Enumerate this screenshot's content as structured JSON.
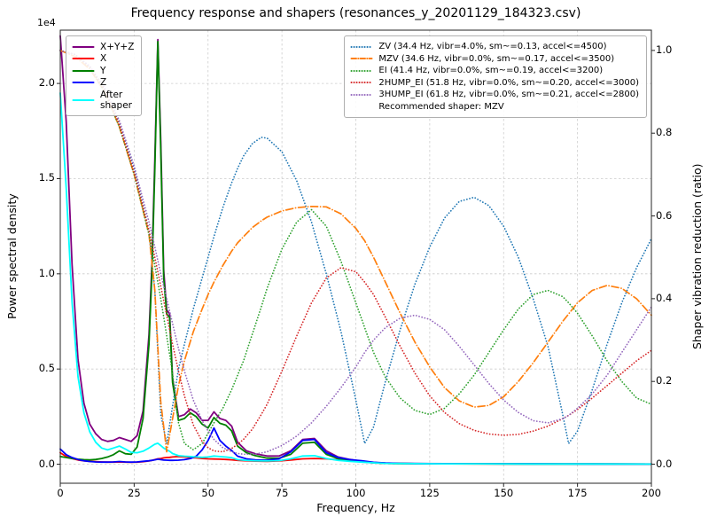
{
  "chart_data": {
    "type": "line",
    "title": "Frequency response and shapers (resonances_y_20201129_184323.csv)",
    "xlabel": "Frequency, Hz",
    "ylabel_left": "Power spectral density",
    "ylabel_right": "Shaper vibration reduction (ratio)",
    "y_left_offset_text": "1e4",
    "recommended_note": "Recommended shaper: MZV",
    "grid": true,
    "legend_left_position": "upper left",
    "legend_right_position": "upper right",
    "xlim": [
      0,
      200
    ],
    "ylim_left": [
      -1000,
      22800
    ],
    "ylim_right": [
      -0.046,
      1.049
    ],
    "y_left_scale": 10000,
    "x_ticks": [
      0,
      25,
      50,
      75,
      100,
      125,
      150,
      175,
      200
    ],
    "y_left_ticks": [
      "0.0",
      "0.5",
      "1.0",
      "1.5",
      "2.0"
    ],
    "y_right_ticks": [
      "0.0",
      "0.2",
      "0.4",
      "0.6",
      "0.8",
      "1.0"
    ],
    "x_psd": [
      0,
      2,
      4,
      6,
      8,
      10,
      12,
      14,
      16,
      18,
      20,
      22,
      24,
      26,
      28,
      30,
      31,
      32,
      33,
      34,
      35,
      36,
      37,
      38,
      40,
      42,
      44,
      46,
      48,
      50,
      52,
      54,
      56,
      58,
      60,
      63,
      66,
      70,
      74,
      78,
      82,
      86,
      90,
      94,
      98,
      102,
      106,
      110,
      115,
      120,
      130,
      140,
      160,
      180,
      200
    ],
    "psd_series": [
      {
        "name": "xyz",
        "label": "X+Y+Z",
        "color": "#800080",
        "style": "solid",
        "axis": "left",
        "y": [
          22500,
          18000,
          10500,
          5500,
          3200,
          2100,
          1600,
          1300,
          1200,
          1250,
          1400,
          1300,
          1200,
          1500,
          2800,
          6800,
          10500,
          16000,
          22300,
          17000,
          10200,
          8100,
          7900,
          4500,
          2500,
          2600,
          2900,
          2700,
          2300,
          2300,
          2750,
          2400,
          2300,
          2000,
          1150,
          700,
          550,
          430,
          430,
          700,
          1300,
          1350,
          700,
          380,
          250,
          160,
          90,
          55,
          42,
          35,
          28,
          25,
          18,
          14,
          12
        ]
      },
      {
        "name": "x",
        "label": "X",
        "color": "#ff0000",
        "style": "solid",
        "axis": "left",
        "y": [
          600,
          400,
          300,
          220,
          180,
          150,
          130,
          120,
          110,
          110,
          120,
          110,
          100,
          110,
          130,
          170,
          200,
          240,
          280,
          300,
          330,
          350,
          360,
          380,
          400,
          380,
          350,
          330,
          300,
          280,
          270,
          260,
          250,
          230,
          200,
          180,
          160,
          150,
          170,
          220,
          280,
          300,
          280,
          230,
          180,
          120,
          70,
          45,
          35,
          28,
          20,
          15,
          10,
          8,
          6
        ]
      },
      {
        "name": "y",
        "label": "Y",
        "color": "#008000",
        "style": "solid",
        "axis": "left",
        "y": [
          400,
          350,
          300,
          260,
          240,
          230,
          250,
          300,
          380,
          500,
          700,
          550,
          520,
          900,
          2400,
          6300,
          10000,
          15500,
          22200,
          16500,
          9800,
          7900,
          7700,
          4300,
          2300,
          2400,
          2700,
          2500,
          2100,
          1900,
          2450,
          2150,
          2050,
          1750,
          950,
          600,
          450,
          320,
          310,
          520,
          1100,
          1150,
          520,
          290,
          190,
          130,
          80,
          45,
          35,
          28,
          22,
          18,
          12,
          10,
          8
        ]
      },
      {
        "name": "z",
        "label": "Z",
        "color": "#0000ff",
        "style": "solid",
        "axis": "left",
        "y": [
          800,
          500,
          350,
          250,
          180,
          140,
          120,
          110,
          110,
          120,
          140,
          120,
          110,
          120,
          150,
          180,
          200,
          230,
          260,
          240,
          220,
          210,
          200,
          200,
          210,
          240,
          300,
          420,
          750,
          1250,
          1900,
          1250,
          950,
          720,
          420,
          280,
          230,
          210,
          280,
          650,
          1250,
          1300,
          600,
          350,
          240,
          180,
          100,
          60,
          45,
          35,
          25,
          20,
          14,
          10,
          8
        ]
      },
      {
        "name": "after_shaper",
        "label": "After\nshaper",
        "color": "#00ffff",
        "style": "solid",
        "axis": "left",
        "y": [
          19500,
          14500,
          8500,
          4600,
          2700,
          1700,
          1150,
          850,
          750,
          850,
          950,
          800,
          620,
          600,
          680,
          850,
          950,
          1050,
          1100,
          980,
          850,
          750,
          680,
          560,
          450,
          420,
          400,
          380,
          360,
          380,
          430,
          400,
          380,
          340,
          240,
          200,
          180,
          170,
          190,
          280,
          430,
          450,
          300,
          200,
          150,
          110,
          70,
          45,
          35,
          28,
          22,
          18,
          12,
          10,
          8
        ]
      }
    ],
    "x_shapers": [
      0,
      5,
      10,
      15,
      20,
      25,
      30,
      32,
      34,
      36,
      38,
      40,
      42,
      45,
      48,
      50,
      52,
      55,
      58,
      60,
      62,
      65,
      68,
      70,
      75,
      80,
      85,
      90,
      95,
      100,
      103,
      106,
      110,
      115,
      120,
      125,
      130,
      135,
      140,
      145,
      150,
      155,
      160,
      165,
      170,
      172,
      175,
      180,
      185,
      190,
      195,
      200
    ],
    "shaper_series": [
      {
        "name": "zv",
        "label": "ZV (34.4 Hz, vibr=4.0%, sm~=0.13, accel<=4500)",
        "color": "#1f77b4",
        "style": "dotted",
        "axis": "right",
        "y": [
          1.0,
          0.99,
          0.96,
          0.905,
          0.825,
          0.715,
          0.565,
          0.42,
          0.12,
          0.05,
          0.14,
          0.23,
          0.29,
          0.375,
          0.45,
          0.5,
          0.55,
          0.62,
          0.68,
          0.715,
          0.745,
          0.775,
          0.79,
          0.788,
          0.755,
          0.685,
          0.585,
          0.46,
          0.32,
          0.155,
          0.05,
          0.09,
          0.2,
          0.325,
          0.435,
          0.525,
          0.595,
          0.635,
          0.645,
          0.625,
          0.575,
          0.5,
          0.4,
          0.285,
          0.12,
          0.05,
          0.08,
          0.18,
          0.29,
          0.39,
          0.475,
          0.545
        ]
      },
      {
        "name": "mzv",
        "label": "MZV (34.6 Hz, vibr=0.0%, sm~=0.17, accel<=3500)",
        "color": "#ff7f0e",
        "style": "dashdot",
        "axis": "right",
        "y": [
          1.0,
          0.985,
          0.955,
          0.9,
          0.815,
          0.7,
          0.555,
          0.42,
          0.15,
          0.03,
          0.11,
          0.19,
          0.25,
          0.32,
          0.375,
          0.41,
          0.44,
          0.48,
          0.515,
          0.535,
          0.55,
          0.572,
          0.588,
          0.597,
          0.612,
          0.62,
          0.623,
          0.622,
          0.605,
          0.57,
          0.54,
          0.5,
          0.44,
          0.365,
          0.295,
          0.235,
          0.185,
          0.153,
          0.138,
          0.142,
          0.163,
          0.2,
          0.245,
          0.295,
          0.345,
          0.363,
          0.39,
          0.42,
          0.432,
          0.425,
          0.4,
          0.36
        ]
      },
      {
        "name": "ei",
        "label": "EI (41.4 Hz, vibr=0.0%, sm~=0.19, accel<=3200)",
        "color": "#2ca02c",
        "style": "dotted",
        "axis": "right",
        "y": [
          1.0,
          0.99,
          0.96,
          0.9,
          0.815,
          0.7,
          0.555,
          0.48,
          0.4,
          0.31,
          0.22,
          0.1,
          0.05,
          0.035,
          0.05,
          0.075,
          0.1,
          0.135,
          0.18,
          0.215,
          0.25,
          0.315,
          0.38,
          0.425,
          0.52,
          0.585,
          0.615,
          0.575,
          0.49,
          0.39,
          0.33,
          0.27,
          0.21,
          0.16,
          0.13,
          0.12,
          0.135,
          0.17,
          0.215,
          0.27,
          0.325,
          0.375,
          0.41,
          0.42,
          0.405,
          0.39,
          0.365,
          0.31,
          0.25,
          0.2,
          0.16,
          0.145
        ]
      },
      {
        "name": "2hump_ei",
        "label": "2HUMP_EI (51.8 Hz, vibr=0.0%, sm~=0.20, accel<=3000)",
        "color": "#d62728",
        "style": "dotted",
        "axis": "right",
        "y": [
          1.0,
          0.99,
          0.96,
          0.905,
          0.82,
          0.705,
          0.565,
          0.5,
          0.43,
          0.36,
          0.29,
          0.225,
          0.165,
          0.095,
          0.055,
          0.04,
          0.032,
          0.03,
          0.038,
          0.048,
          0.06,
          0.085,
          0.12,
          0.145,
          0.225,
          0.31,
          0.39,
          0.45,
          0.475,
          0.465,
          0.44,
          0.41,
          0.355,
          0.285,
          0.22,
          0.165,
          0.125,
          0.098,
          0.082,
          0.073,
          0.07,
          0.072,
          0.08,
          0.092,
          0.11,
          0.118,
          0.132,
          0.16,
          0.19,
          0.22,
          0.25,
          0.275
        ]
      },
      {
        "name": "3hump_ei",
        "label": "3HUMP_EI (61.8 Hz, vibr=0.0%, sm~=0.21, accel<=2800)",
        "color": "#9467bd",
        "style": "dotted",
        "axis": "right",
        "y": [
          1.0,
          0.99,
          0.962,
          0.91,
          0.83,
          0.72,
          0.585,
          0.525,
          0.46,
          0.4,
          0.34,
          0.28,
          0.225,
          0.155,
          0.105,
          0.08,
          0.06,
          0.04,
          0.03,
          0.026,
          0.024,
          0.024,
          0.027,
          0.03,
          0.045,
          0.068,
          0.1,
          0.14,
          0.185,
          0.235,
          0.27,
          0.3,
          0.33,
          0.353,
          0.36,
          0.35,
          0.325,
          0.285,
          0.24,
          0.195,
          0.155,
          0.125,
          0.105,
          0.1,
          0.11,
          0.118,
          0.135,
          0.17,
          0.215,
          0.27,
          0.325,
          0.38
        ]
      }
    ]
  }
}
